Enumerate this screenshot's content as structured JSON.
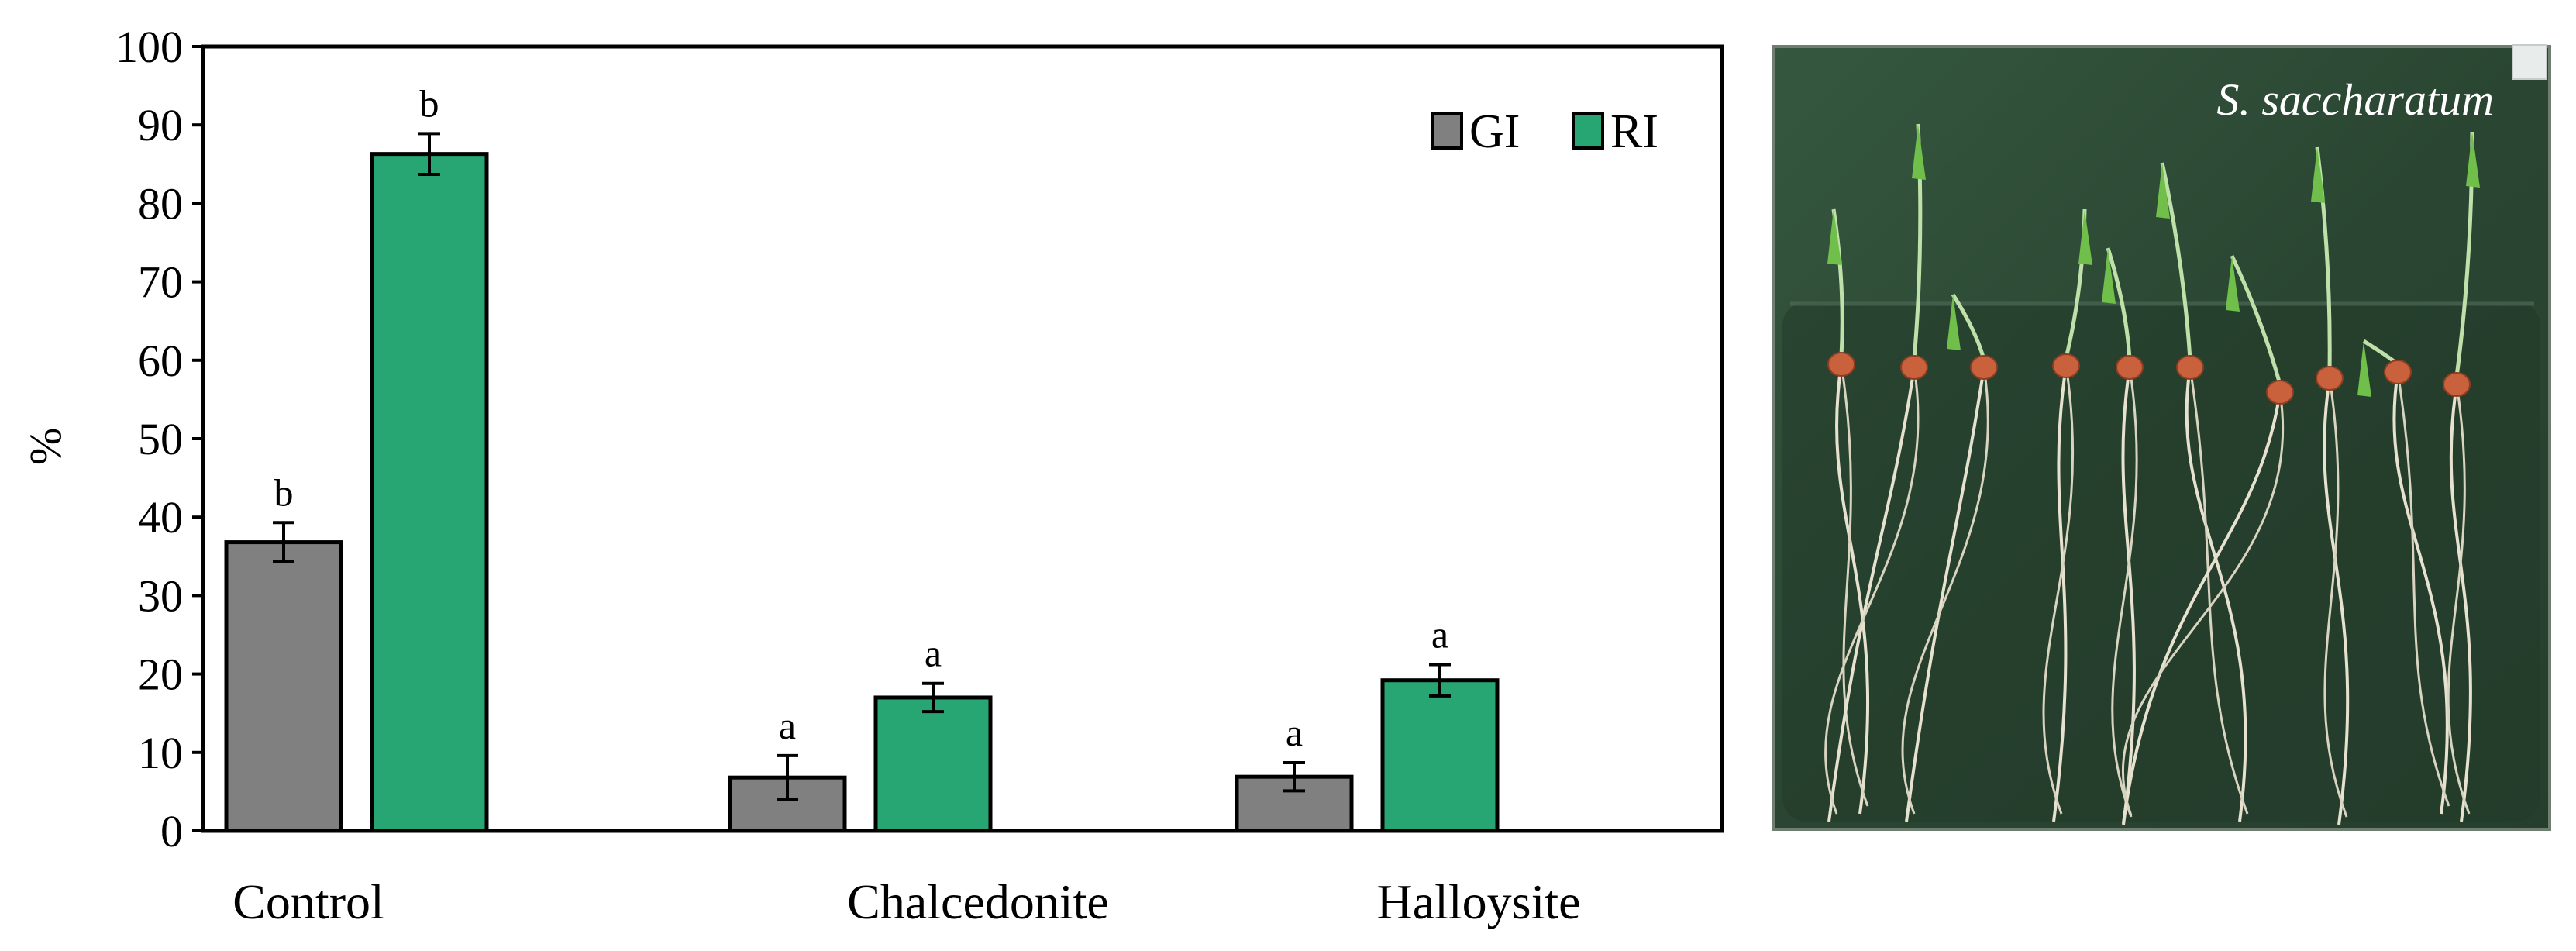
{
  "chart_data": {
    "type": "bar",
    "categories": [
      "Control",
      "Chalcedonite",
      "Halloysite"
    ],
    "series": [
      {
        "name": "GI",
        "color": "#808080",
        "values": [
          36.8,
          6.8,
          6.9
        ],
        "errors": [
          2.5,
          2.8,
          1.8
        ],
        "letters": [
          "b",
          "a",
          "a"
        ]
      },
      {
        "name": "RI",
        "color": "#27a572",
        "values": [
          86.3,
          17.0,
          19.2
        ],
        "errors": [
          2.6,
          1.8,
          2.0
        ],
        "letters": [
          "b",
          "a",
          "a"
        ]
      }
    ],
    "xlabel": "",
    "ylabel": "%",
    "ylim": [
      0,
      100
    ],
    "yticks": [
      0,
      10,
      20,
      30,
      40,
      50,
      60,
      70,
      80,
      90,
      100
    ],
    "grid": false,
    "legend_position": "top-right"
  },
  "photo": {
    "caption": "S. saccharatum",
    "background_color": "#2c4a34"
  }
}
